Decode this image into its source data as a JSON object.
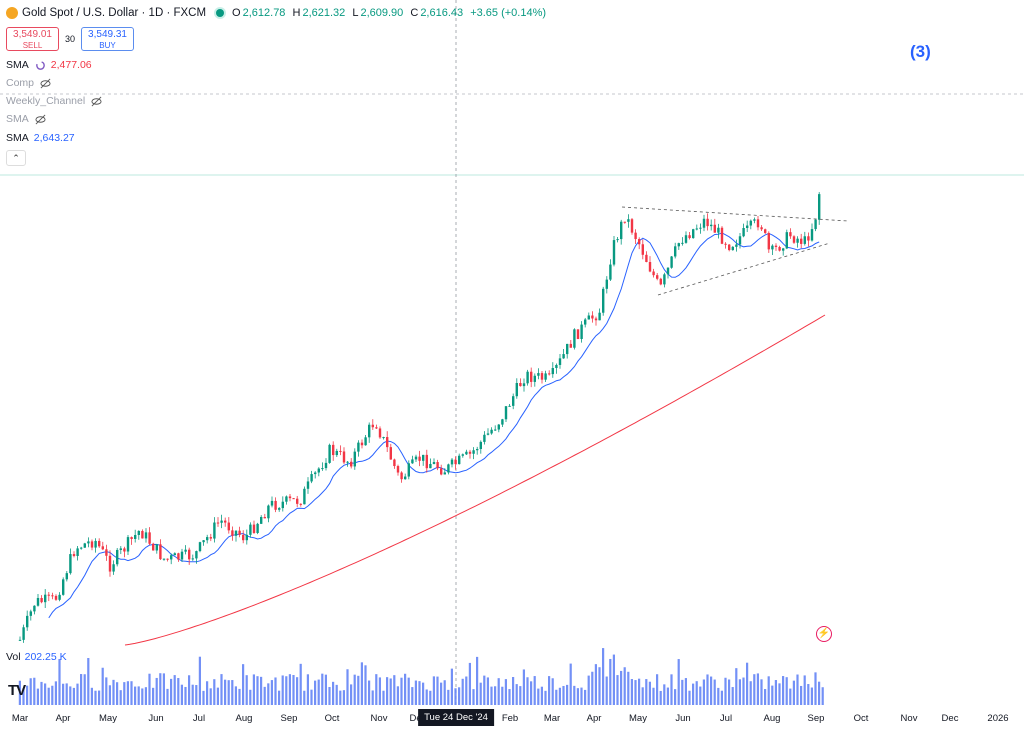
{
  "header": {
    "symbol_title": "Gold Spot / U.S. Dollar · 1D · FXCM",
    "ohlc": {
      "o_label": "O",
      "o": "2,612.78",
      "h_label": "H",
      "h": "2,621.32",
      "l_label": "L",
      "l": "2,609.90",
      "c_label": "C",
      "c": "2,616.43",
      "change": "+3.65 (+0.14%)"
    }
  },
  "trade": {
    "sell_price": "3,549.01",
    "sell_label": "SELL",
    "spread": "30",
    "buy_price": "3,549.31",
    "buy_label": "BUY"
  },
  "indicators": [
    {
      "name": "SMA",
      "value": "2,477.06"
    },
    {
      "name": "Comp"
    },
    {
      "name": "Weekly_Channel"
    },
    {
      "name": "SMA"
    },
    {
      "name": "SMA",
      "value": "2,643.27"
    }
  ],
  "annotation": {
    "wave_label": "(3)"
  },
  "volume": {
    "label": "Vol",
    "value": "202.25 K"
  },
  "logo_text": "TV",
  "time_axis": {
    "labels": [
      "Mar",
      "Apr",
      "May",
      "Jun",
      "Jul",
      "Aug",
      "Sep",
      "Oct",
      "Nov",
      "Dec",
      "Feb",
      "Mar",
      "Apr",
      "May",
      "Jun",
      "Jul",
      "Aug",
      "Sep",
      "Oct",
      "Nov",
      "Dec",
      "2026"
    ],
    "crosshair": "Tue 24 Dec '24"
  },
  "colors": {
    "up": "#089981",
    "down": "#f23645",
    "sma_fast": "#2962ff",
    "sma_slow": "#f23645",
    "volume": "#5b7cf5",
    "wave_label": "#2962ff"
  }
}
